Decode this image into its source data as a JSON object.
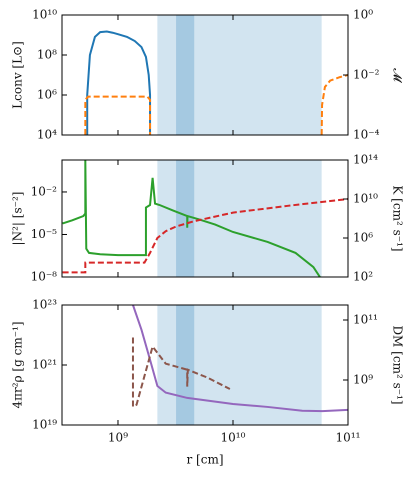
{
  "chart_data": [
    {
      "type": "line",
      "log_x": true,
      "log_y": true,
      "legend": false,
      "show_xtick_labels": false,
      "xlim": [
        326000000.0,
        100000000000.0
      ],
      "xticks": [
        {
          "value": 1000000000.0,
          "label": "10⁹"
        },
        {
          "value": 10000000000.0,
          "label": "10¹⁰"
        },
        {
          "value": 100000000000.0,
          "label": "10¹¹"
        }
      ],
      "ylim": [
        10000.0,
        10000000000.0
      ],
      "yticks": [
        {
          "value": 10000.0,
          "label": "10⁴"
        },
        {
          "value": 1000000.0,
          "label": "10⁶"
        },
        {
          "value": 100000000.0,
          "label": "10⁸"
        },
        {
          "value": 10000000000.0,
          "label": "10¹⁰"
        }
      ],
      "y2lim": [
        0.0001,
        1
      ],
      "y2ticks": [
        {
          "value": 0.0001,
          "label": "10⁻⁴"
        },
        {
          "value": 0.01,
          "label": "10⁻²"
        },
        {
          "value": 1,
          "label": "10⁰"
        }
      ],
      "shaded_regions": [
        {
          "x": [
            2200000000.0,
            59000000000.0
          ],
          "color": "#1f77b4",
          "alpha": 0.2
        },
        {
          "x": [
            3200000000.0,
            4600000000.0
          ],
          "color": "#1f77b4",
          "alpha": 0.25
        }
      ],
      "series": [
        {
          "name": "Lconv [L⊙]",
          "color": "#1f77b4",
          "dashed": false,
          "axis": "y",
          "x": [
            540000000.0,
            540000000.0,
            570000000.0,
            630000000.0,
            700000000.0,
            800000000.0,
            900000000.0,
            1000000000.0,
            1200000000.0,
            1400000000.0,
            1600000000.0,
            1750000000.0,
            1850000000.0,
            1900000000.0,
            1900000000.0
          ],
          "values": [
            10000.0,
            1000000.0,
            100000000.0,
            800000000.0,
            1400000000.0,
            1500000000.0,
            1300000000.0,
            1100000000.0,
            800000000.0,
            500000000.0,
            250000000.0,
            80000000.0,
            10000000.0,
            1000000.0,
            10000.0
          ]
        },
        {
          "name": "𝓜",
          "color": "#ff7f0e",
          "dashed": true,
          "axis": "y2",
          "x": [
            520000000.0,
            520000000.0,
            550000000.0,
            1800000000.0,
            1900000000.0,
            1900000000.0,
            null,
            59000000000.0,
            59500000000.0,
            63000000000.0,
            70000000000.0,
            85000000000.0,
            100000000000.0
          ],
          "values": [
            0.0001,
            0.0015,
            0.0019,
            0.0019,
            0.0015,
            0.0001,
            null,
            0.0001,
            0.001,
            0.004,
            0.0065,
            0.0085,
            0.01
          ]
        }
      ]
    },
    {
      "type": "line",
      "log_x": true,
      "log_y": true,
      "legend": false,
      "show_xtick_labels": false,
      "xlim": [
        326000000.0,
        100000000000.0
      ],
      "xticks": [
        {
          "value": 1000000000.0,
          "label": "10⁹"
        },
        {
          "value": 10000000000.0,
          "label": "10¹⁰"
        },
        {
          "value": 100000000000.0,
          "label": "10¹¹"
        }
      ],
      "ylim": [
        1e-08,
        1.8
      ],
      "yticks": [
        {
          "value": 1e-08,
          "label": "10⁻⁸"
        },
        {
          "value": 1e-05,
          "label": "10⁻⁵"
        },
        {
          "value": 0.01,
          "label": "10⁻²"
        }
      ],
      "y2lim": [
        100.0,
        100000000000000.0
      ],
      "y2ticks": [
        {
          "value": 100.0,
          "label": "10²"
        },
        {
          "value": 1000000.0,
          "label": "10⁶"
        },
        {
          "value": 10000000000.0,
          "label": "10¹⁰"
        },
        {
          "value": 100000000000000.0,
          "label": "10¹⁴"
        }
      ],
      "shaded_regions": [
        {
          "x": [
            2200000000.0,
            59000000000.0
          ],
          "color": "#1f77b4",
          "alpha": 0.2
        },
        {
          "x": [
            3200000000.0,
            4600000000.0
          ],
          "color": "#1f77b4",
          "alpha": 0.25
        }
      ],
      "series": [
        {
          "name": "|N²| [s⁻²]",
          "color": "#2ca02c",
          "dashed": false,
          "axis": "y",
          "x": [
            330000000.0,
            400000000.0,
            500000000.0,
            520000000.0,
            520000000.0,
            530000000.0,
            560000000.0,
            700000000.0,
            1000000000.0,
            1500000000.0,
            1750000000.0,
            1750000000.0,
            1900000000.0,
            2000000000.0,
            2100000000.0,
            2300000000.0,
            3000000000.0,
            4000000000.0,
            4000000000.0,
            4020000000.0,
            5000000000.0,
            7000000000.0,
            10000000000.0,
            20000000000.0,
            35000000000.0,
            50000000000.0,
            57000000000.0
          ],
          "values": [
            6e-05,
            0.0001,
            0.0002,
            0.0003,
            1.8,
            1e-06,
            5e-07,
            4e-07,
            3.5e-07,
            3.5e-07,
            3.5e-07,
            0.0008,
            0.0012,
            0.1,
            0.0015,
            0.0012,
            0.0005,
            0.0002,
            3e-05,
            0.0002,
            0.00012,
            5e-05,
            1.5e-05,
            3e-06,
            5e-07,
            5e-08,
            1e-08
          ]
        },
        {
          "name": "K [cm² s⁻¹]",
          "color": "#d62728",
          "dashed": true,
          "axis": "y2",
          "x": [
            330000000.0,
            520000000.0,
            520000000.0,
            1700000000.0,
            1900000000.0,
            2200000000.0,
            2600000000.0,
            3200000000.0,
            4500000000.0,
            10000000000.0,
            30000000000.0,
            100000000000.0
          ],
          "values": [
            300.0,
            300.0,
            3000.0,
            3000.0,
            30000.0,
            1000000.0,
            5000000.0,
            15000000.0,
            50000000.0,
            400000000.0,
            2000000000.0,
            10000000000.0
          ]
        }
      ]
    },
    {
      "type": "line",
      "log_x": true,
      "log_y": true,
      "legend": false,
      "show_xtick_labels": true,
      "xlabel": "r [cm]",
      "xlim": [
        326000000.0,
        100000000000.0
      ],
      "xticks": [
        {
          "value": 1000000000.0,
          "label": "10⁹"
        },
        {
          "value": 10000000000.0,
          "label": "10¹⁰"
        },
        {
          "value": 100000000000.0,
          "label": "10¹¹"
        }
      ],
      "ylim": [
        1e+19,
        1e+23
      ],
      "yticks": [
        {
          "value": 1e+19,
          "label": "10¹⁹"
        },
        {
          "value": 1e+21,
          "label": "10²¹"
        },
        {
          "value": 1e+23,
          "label": "10²³"
        }
      ],
      "y2lim": [
        31600000.0,
        316000000000.0
      ],
      "y2ticks": [
        {
          "value": 1000000000.0,
          "label": "10⁹"
        },
        {
          "value": 100000000000.0,
          "label": "10¹¹"
        }
      ],
      "shaded_regions": [
        {
          "x": [
            2200000000.0,
            59000000000.0
          ],
          "color": "#1f77b4",
          "alpha": 0.2
        },
        {
          "x": [
            3200000000.0,
            4600000000.0
          ],
          "color": "#1f77b4",
          "alpha": 0.25
        }
      ],
      "series": [
        {
          "name": "4πr²ρ [g cm⁻¹]",
          "color": "#9467bd",
          "dashed": false,
          "axis": "y",
          "x": [
            1350000000.0,
            1600000000.0,
            1900000000.0,
            2200000000.0,
            2600000000.0,
            4000000000.0,
            10000000000.0,
            20000000000.0,
            40000000000.0,
            60000000000.0,
            100000000000.0
          ],
          "values": [
            1e+23,
            1.5e+22,
            1.5e+21,
            2e+20,
            1.2e+20,
            8e+19,
            5e+19,
            4e+19,
            3e+19,
            2.9e+19,
            3.2e+19
          ]
        },
        {
          "name": "DM [cm² s⁻¹]",
          "color": "#8c564b",
          "dashed": true,
          "axis": "y2",
          "x": [
            1350000000.0,
            1350000000.0,
            1450000000.0,
            2000000000.0,
            2600000000.0,
            4000000000.0,
            4000000000.0,
            4050000000.0,
            6000000000.0,
            9400000000.0
          ],
          "values": [
            26000000000.0,
            130000000.0,
            150000000.0,
            13000000000.0,
            3500000000.0,
            2200000000.0,
            600000000.0,
            2200000000.0,
            1200000000.0,
            500000000.0
          ]
        }
      ]
    }
  ]
}
